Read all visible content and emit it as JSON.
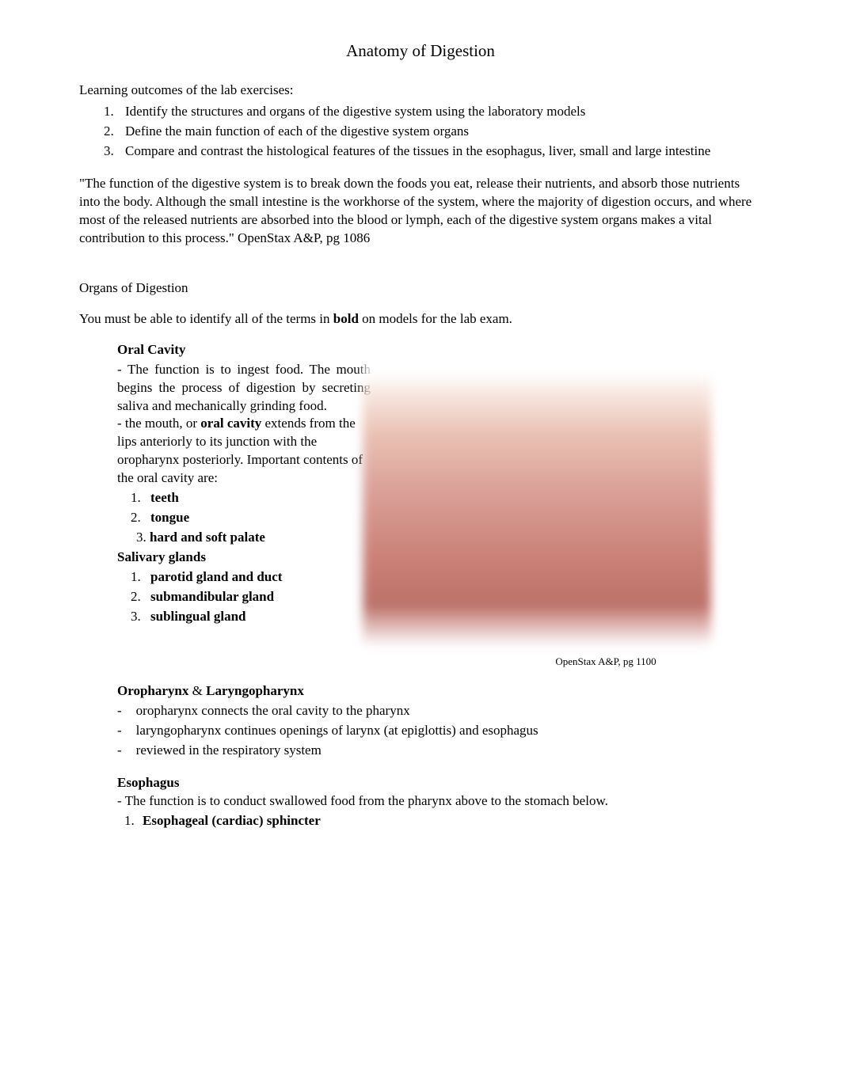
{
  "title": "Anatomy of Digestion",
  "learning_heading": "Learning outcomes of the lab exercises:",
  "outcomes": [
    "Identify the structures and organs of the digestive system using the laboratory models",
    "Define the main function of each of the digestive system organs",
    "Compare and contrast the histological features of the tissues in the esophagus, liver, small and large intestine"
  ],
  "quote": "\"The function of the digestive system is to break down the foods you eat, release their nutrients, and absorb those nutrients into the body. Although the small intestine is the workhorse of the system, where the majority of digestion occurs, and where most of the released nutrients are absorbed into the blood or lymph, each of the digestive system organs makes a vital contribution to this process.\"       OpenStax A&P, pg 1086",
  "organs_heading": "Organs of Digestion",
  "identify_pre": "You must be able to identify all of the terms in ",
  "identify_bold": "bold",
  "identify_post": " on models for the lab exam.",
  "oral": {
    "heading": "Oral Cavity",
    "para1_pre": "- The function is to ingest food.     The mouth begins the process of digestion by secreting saliva and mechanically grinding food.",
    "para2_pre": "- the mouth, or ",
    "para2_bold": "oral cavity",
    "para2_post": " extends from the lips anteriorly to its junction with the oropharynx posteriorly.   Important contents of the oral cavity are:",
    "items": [
      "teeth",
      "tongue",
      "hard and soft palate"
    ]
  },
  "salivary": {
    "heading": "Salivary glands",
    "items": [
      "parotid gland and duct",
      "submandibular gland",
      "sublingual gland"
    ]
  },
  "image_caption": "OpenStax A&P, pg 1100",
  "oropharynx": {
    "heading_bold1": "Oropharynx",
    "heading_mid": "    & ",
    "heading_bold2": "Laryngopharynx",
    "items": [
      "oropharynx connects the oral cavity to the pharynx",
      "laryngopharynx continues openings of larynx (at epiglottis) and esophagus",
      "reviewed in the respiratory system"
    ]
  },
  "esophagus": {
    "heading": "Esophagus",
    "text": "- The function is to conduct swallowed food from the pharynx above to the stomach below.",
    "item": "Esophageal (cardiac) sphincter"
  }
}
